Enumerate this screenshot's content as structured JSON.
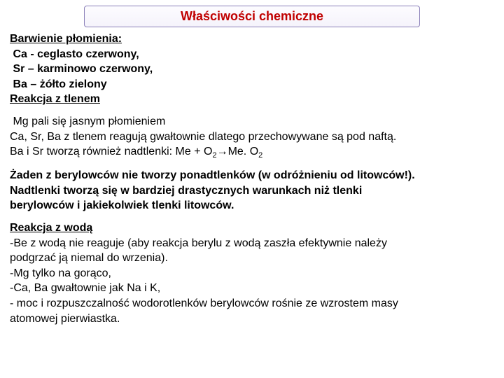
{
  "title": "Właściwości chemiczne",
  "section1": {
    "heading": "Barwienie płomienia:",
    "l1": " Ca  - ceglasto czerwony,",
    "l2": " Sr – karminowo czerwony,",
    "l3": " Ba – żółto zielony",
    "heading2": "Reakcja z tlenem"
  },
  "section2": {
    "l1": " Mg pali się jasnym płomieniem",
    "l2": "Ca, Sr, Ba z tlenem reagują gwałtownie dlatego przechowywane są pod naftą.",
    "l3a": "Ba i Sr tworzą również nadtlenki:  Me  +  O",
    "l3b": "→Me. O"
  },
  "section3": {
    "l1": "Żaden z berylowców nie tworzy ponadtlenków (w odróżnieniu od litowców!).",
    "l2": "Nadtlenki tworzą się w bardziej drastycznych warunkach niż tlenki",
    "l3": "berylowców i jakiekolwiek tlenki litowców."
  },
  "section4": {
    "heading": "Reakcja z wodą",
    "l1": "-Be z wodą nie reaguje (aby reakcja berylu z wodą zaszła efektywnie należy",
    "l2": "podgrzać ją niemal do wrzenia).",
    "l3": "-Mg tylko na gorąco,",
    "l4": "-Ca, Ba gwałtownie jak Na i K,",
    "l5": "- moc i rozpuszczalność wodorotlenków berylowców rośnie ze wzrostem masy",
    "l6": "atomowej pierwiastka."
  },
  "sub2": "2"
}
